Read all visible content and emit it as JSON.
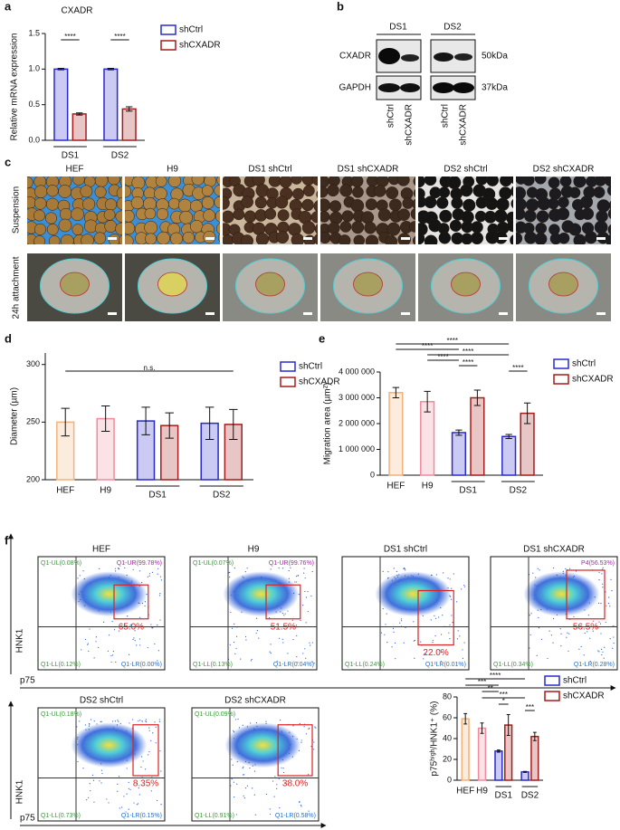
{
  "chart_data": [
    {
      "type": "bar",
      "panel": "a",
      "title": "CXADR",
      "ylabel": "Relative mRNA expression",
      "legend": [
        {
          "name": "shCtrl",
          "color": "#2a2acc"
        },
        {
          "name": "shCXADR",
          "color": "#a51c1c"
        }
      ],
      "groups": [
        {
          "label": "DS1",
          "bars": [
            {
              "value": 1.0,
              "error": 0.01,
              "color": "#2a2acc"
            },
            {
              "value": 0.37,
              "error": 0.015,
              "color": "#a51c1c"
            }
          ]
        },
        {
          "label": "DS2",
          "bars": [
            {
              "value": 1.0,
              "error": 0.01,
              "color": "#2a2acc"
            },
            {
              "value": 0.44,
              "error": 0.03,
              "color": "#a51c1c"
            }
          ]
        }
      ],
      "ylim": [
        0,
        1.5
      ],
      "yticks": [
        {
          "value": 0,
          "label": "0.0"
        },
        {
          "value": 0.5,
          "label": "0.5"
        },
        {
          "value": 1,
          "label": "1.0"
        },
        {
          "value": 1.5,
          "label": "1.5"
        }
      ],
      "brackets": [
        {
          "text": "****",
          "bars": [
            0,
            1
          ]
        },
        {
          "text": "****",
          "bars": [
            2,
            3
          ]
        }
      ]
    },
    {
      "type": "bar",
      "panel": "d",
      "ylabel": "Diameter (µm)",
      "legend": [
        {
          "name": "shCtrl",
          "color": "#2a2acc"
        },
        {
          "name": "shCXADR",
          "color": "#a51c1c"
        }
      ],
      "groups": [
        {
          "label": "HEF",
          "bars": [
            {
              "value": 250,
              "error": 12,
              "color": "#f2b27a"
            }
          ]
        },
        {
          "label": "H9",
          "bars": [
            {
              "value": 253,
              "error": 11,
              "color": "#f08a9c"
            }
          ]
        },
        {
          "label": "DS1",
          "bars": [
            {
              "value": 251,
              "error": 12,
              "color": "#2a2acc"
            },
            {
              "value": 247,
              "error": 11,
              "color": "#a51c1c"
            }
          ]
        },
        {
          "label": "DS2",
          "bars": [
            {
              "value": 249,
              "error": 14,
              "color": "#2a2acc"
            },
            {
              "value": 248,
              "error": 13,
              "color": "#a51c1c"
            }
          ]
        }
      ],
      "ylim": [
        200,
        310
      ],
      "yticks": [
        200,
        250,
        300
      ],
      "brackets": [
        {
          "text": "n.s.",
          "bars": [
            0,
            5
          ]
        }
      ]
    },
    {
      "type": "bar",
      "panel": "e",
      "ylabel": "Migration area (µm²)",
      "legend": [
        {
          "name": "shCtrl",
          "color": "#2a2acc"
        },
        {
          "name": "shCXADR",
          "color": "#a51c1c"
        }
      ],
      "groups": [
        {
          "label": "HEF",
          "bars": [
            {
              "value": 3200000,
              "error": 200000,
              "color": "#f2b27a"
            }
          ]
        },
        {
          "label": "H9",
          "bars": [
            {
              "value": 2850000,
              "error": 400000,
              "color": "#f08a9c"
            }
          ]
        },
        {
          "label": "DS1",
          "bars": [
            {
              "value": 1650000,
              "error": 100000,
              "color": "#2a2acc"
            },
            {
              "value": 3000000,
              "error": 300000,
              "color": "#a51c1c"
            }
          ]
        },
        {
          "label": "DS2",
          "bars": [
            {
              "value": 1500000,
              "error": 80000,
              "color": "#2a2acc"
            },
            {
              "value": 2400000,
              "error": 400000,
              "color": "#a51c1c"
            }
          ]
        }
      ],
      "ylim": [
        0,
        4000000
      ],
      "yticks": [
        0,
        {
          "value": 1000000,
          "label": "1 000 000"
        },
        {
          "value": 2000000,
          "label": "2 000 000"
        },
        {
          "value": 3000000,
          "label": "3 000 000"
        },
        {
          "value": 4000000,
          "label": "4 000 000"
        }
      ],
      "brackets": [
        {
          "text": "****",
          "bars": [
            0,
            4
          ]
        },
        {
          "text": "****",
          "bars": [
            0,
            2
          ]
        },
        {
          "text": "****",
          "bars": [
            1,
            4
          ]
        },
        {
          "text": "****",
          "bars": [
            1,
            2
          ]
        },
        {
          "text": "****",
          "bars": [
            2,
            3
          ]
        },
        {
          "text": "****",
          "bars": [
            4,
            5
          ]
        }
      ]
    },
    {
      "type": "bar",
      "ylabel": "p75ʰⁱᵍʰ/HNK1⁺ (%)",
      "legend": [
        {
          "name": "shCtrl",
          "color": "#2a2acc"
        },
        {
          "name": "shCXADR",
          "color": "#a51c1c"
        }
      ],
      "groups": [
        {
          "label": "HEF",
          "bars": [
            {
              "value": 59,
              "error": 5,
              "color": "#f2b27a"
            }
          ]
        },
        {
          "label": "H9",
          "bars": [
            {
              "value": 50,
              "error": 5,
              "color": "#f08a9c"
            }
          ]
        },
        {
          "label": "DS1",
          "bars": [
            {
              "value": 28,
              "error": 1,
              "color": "#2a2acc"
            },
            {
              "value": 53,
              "error": 10,
              "color": "#a51c1c"
            }
          ]
        },
        {
          "label": "DS2",
          "bars": [
            {
              "value": 8,
              "error": 0.5,
              "color": "#2a2acc"
            },
            {
              "value": 42,
              "error": 4,
              "color": "#a51c1c"
            }
          ]
        }
      ],
      "ylim": [
        0,
        80
      ],
      "yticks": [
        0,
        20,
        40,
        60,
        80
      ],
      "brackets": [
        {
          "text": "****",
          "bars": [
            0,
            4
          ]
        },
        {
          "text": "***",
          "bars": [
            0,
            2
          ]
        },
        {
          "text": "**",
          "bars": [
            1,
            2
          ]
        },
        {
          "text": "***",
          "bars": [
            1,
            4
          ]
        },
        {
          "text": "*",
          "bars": [
            2,
            3
          ]
        },
        {
          "text": "***",
          "bars": [
            4,
            5
          ]
        }
      ]
    }
  ],
  "blot": {
    "panel": "b",
    "lines": [
      "DS1",
      "DS2"
    ],
    "proteins": [
      {
        "name": "CXADR",
        "size": "50kDa"
      },
      {
        "name": "GAPDH",
        "size": "37kDa"
      }
    ],
    "lanes": [
      "shCtrl",
      "shCXADR",
      "shCtrl",
      "shCXADR"
    ]
  },
  "micrographs": {
    "panel": "c",
    "columns": [
      "HEF",
      "H9",
      "DS1 shCtrl",
      "DS1 shCXADR",
      "DS2 shCtrl",
      "DS2 shCXADR"
    ],
    "rows": [
      "Suspension",
      "24h attachment"
    ]
  },
  "flow": {
    "panel": "f",
    "y_label": "HNK1",
    "x_label": "p75",
    "plots": [
      {
        "title": "HEF",
        "gate": "65.0%",
        "quadrants": {
          "UL": "Q1-UL(0.08%)",
          "UR": "Q1-UR(99.78%)",
          "LL": "Q1-LL(0.12%)",
          "LR": "Q1-LR(0.00%)"
        }
      },
      {
        "title": "H9",
        "gate": "51.5%",
        "quadrants": {
          "UL": "Q1-UL(0.07%)",
          "UR": "Q1-UR(99.76%)",
          "LL": "Q1-LL(0.13%)",
          "LR": "Q1-LR(0.04%)"
        }
      },
      {
        "title": "DS1 shCtrl",
        "gate": "22.0%",
        "quadrants": {
          "LL": "Q1-LL(0.24%)",
          "LR": "Q1-LR(0.01%)"
        }
      },
      {
        "title": "DS1 shCXADR",
        "gate": "56.5%",
        "quadrants": {
          "UR": "P4(56.53%)",
          "LL": "Q1-LL(0.34%)",
          "LR": "Q1-LR(0.28%)"
        }
      },
      {
        "title": "DS2 shCtrl",
        "gate": "8.35%",
        "quadrants": {
          "UL": "Q1-UL(0.18%)",
          "LL": "Q1-LL(0.73%)",
          "LR": "Q1-LR(0.15%)"
        }
      },
      {
        "title": "DS2 shCXADR",
        "gate": "38.0%",
        "quadrants": {
          "UL": "Q1-UL(0.09%)",
          "LL": "Q1-LL(0.91%)",
          "LR": "Q1-LR(0.58%)"
        }
      }
    ]
  }
}
